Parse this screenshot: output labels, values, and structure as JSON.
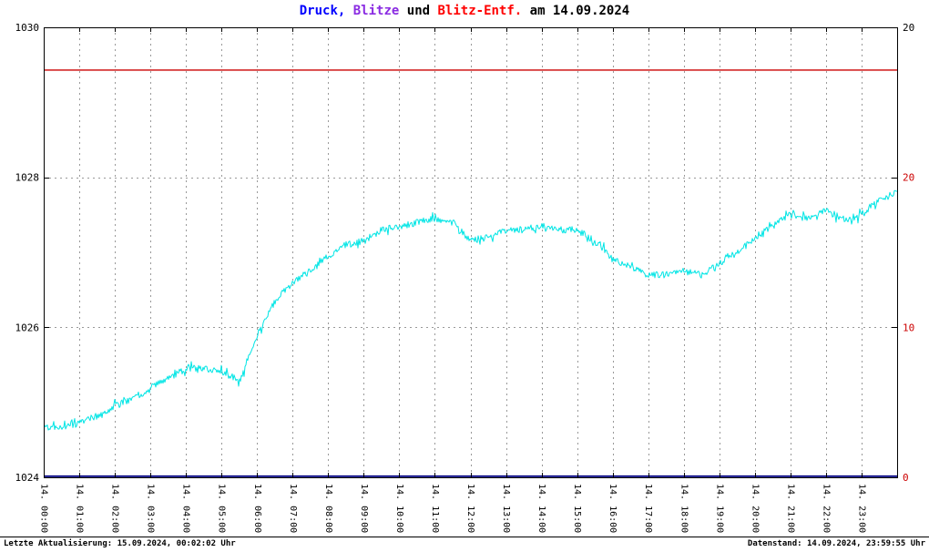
{
  "title": {
    "full": "Druck, Blitze und Blitz-Entf. am 14.09.2024",
    "parts": [
      {
        "text": "Druck,",
        "color": "#0000ff"
      },
      {
        "text": " Blitze",
        "color": "#8a2be2"
      },
      {
        "text": " und ",
        "color": "#000000"
      },
      {
        "text": "Blitz-Entf.",
        "color": "#ff0000"
      },
      {
        "text": " am 14.09.2024",
        "color": "#000000"
      }
    ]
  },
  "footer": {
    "left": "Letzte Aktualisierung: 15.09.2024, 00:02:02 Uhr",
    "right": "Datenstand: 14.09.2024, 23:59:55 Uhr"
  },
  "colors": {
    "druck_line": "#00e5e5",
    "blitze_line": "#000080",
    "blitz_entf_line": "#cc0000",
    "grid": "#999999",
    "frame": "#000000",
    "left_axis_labels": "#000000",
    "right_axis_black_label": "#000000",
    "right_axis_red_labels": "#cc0000",
    "background": "#ffffff"
  },
  "chart_data": {
    "type": "line",
    "title": "Druck, Blitze und Blitz-Entf. am 14.09.2024",
    "x_axis": {
      "tick_labels": [
        "14. 00:00",
        "14. 01:00",
        "14. 02:00",
        "14. 03:00",
        "14. 04:00",
        "14. 05:00",
        "14. 06:00",
        "14. 07:00",
        "14. 08:00",
        "14. 09:00",
        "14. 10:00",
        "14. 11:00",
        "14. 12:00",
        "14. 13:00",
        "14. 14:00",
        "14. 15:00",
        "14. 16:00",
        "14. 17:00",
        "14. 18:00",
        "14. 19:00",
        "14. 20:00",
        "14. 21:00",
        "14. 22:00",
        "14. 23:00"
      ],
      "hours_range": [
        0,
        24
      ],
      "grid": "dashed-vertical-hourly"
    },
    "left_axis": {
      "ticks": [
        1024,
        1026,
        1028,
        1030
      ],
      "range": [
        1024,
        1030
      ]
    },
    "right_axis_black": {
      "ticks": [
        20
      ],
      "range": [
        0,
        20
      ]
    },
    "right_axis_red": {
      "ticks": [
        20,
        10,
        0
      ],
      "at_left_axis_values": [
        1028,
        1026,
        1024
      ]
    },
    "grid_horizontal_at": [
      1026,
      1028
    ],
    "series": [
      {
        "name": "Druck",
        "color": "#00e5e5",
        "axis": "left",
        "sample_interval_hours": 0.5,
        "noise_band_hpa": 0.08,
        "values": [
          1024.65,
          1024.68,
          1024.72,
          1024.82,
          1024.95,
          1025.05,
          1025.18,
          1025.32,
          1025.45,
          1025.45,
          1025.42,
          1025.28,
          1025.9,
          1026.35,
          1026.6,
          1026.75,
          1026.95,
          1027.1,
          1027.15,
          1027.3,
          1027.35,
          1027.4,
          1027.45,
          1027.4,
          1027.15,
          1027.2,
          1027.3,
          1027.3,
          1027.35,
          1027.3,
          1027.3,
          1027.15,
          1026.9,
          1026.8,
          1026.7,
          1026.7,
          1026.75,
          1026.7,
          1026.85,
          1027.0,
          1027.2,
          1027.35,
          1027.5,
          1027.45,
          1027.55,
          1027.45,
          1027.5,
          1027.7,
          1027.8
        ]
      },
      {
        "name": "Blitze",
        "color": "#000080",
        "axis": "right_black",
        "constant_value": 0
      },
      {
        "name": "Blitz-Entf.",
        "color": "#cc0000",
        "axis": "right_black",
        "constant_value": 18.1
      }
    ]
  }
}
